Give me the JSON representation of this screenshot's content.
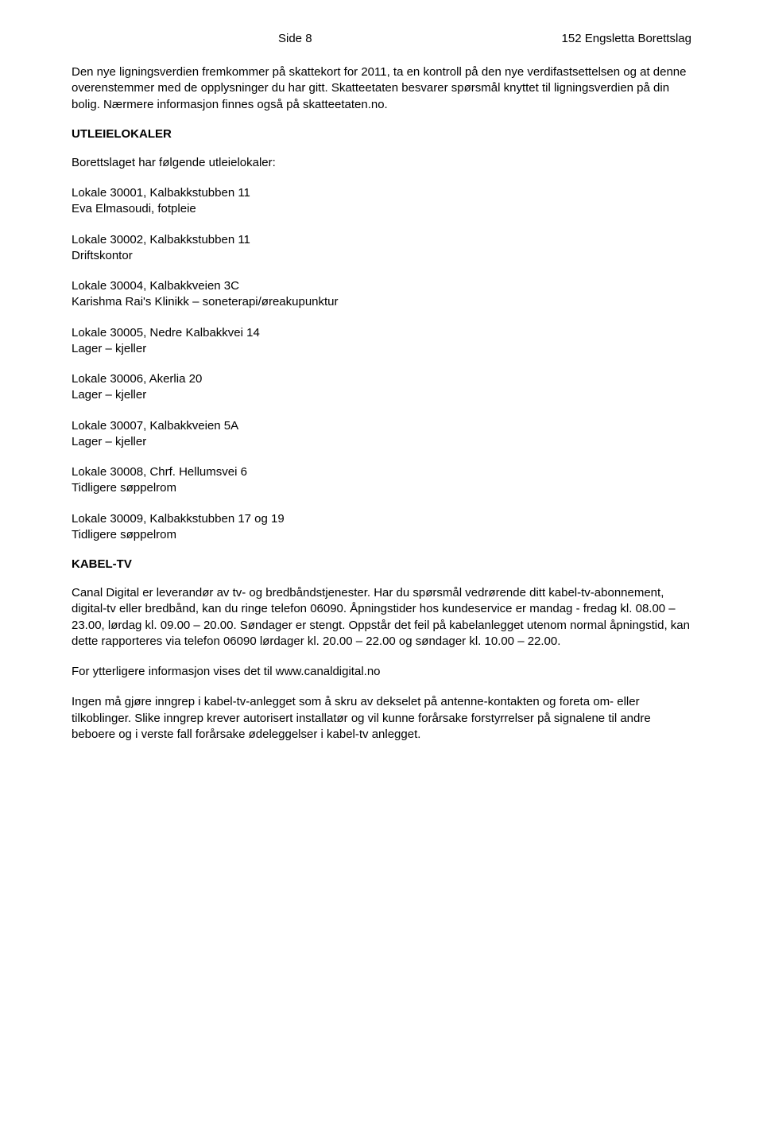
{
  "header": {
    "left": "Side 8",
    "right": "152 Engsletta Borettslag"
  },
  "intro": {
    "p1": "Den nye ligningsverdien fremkommer på skattekort for 2011, ta en kontroll på den nye verdifastsettelsen og at denne overenstemmer med de opplysninger du har gitt. Skatteetaten besvarer spørsmål knyttet til ligningsverdien på din bolig. Nærmere informasjon finnes også på skatteetaten.no."
  },
  "utleie": {
    "title": "UTLEIELOKALER",
    "lead": "Borettslaget har følgende utleielokaler:",
    "items": [
      {
        "line1": "Lokale 30001, Kalbakkstubben 11",
        "line2": "Eva Elmasoudi, fotpleie"
      },
      {
        "line1": "Lokale 30002, Kalbakkstubben 11",
        "line2": "Driftskontor"
      },
      {
        "line1": "Lokale 30004, Kalbakkveien 3C",
        "line2": "Karishma Rai's Klinikk – soneterapi/øreakupunktur"
      },
      {
        "line1": "Lokale 30005, Nedre Kalbakkvei 14",
        "line2": "Lager – kjeller"
      },
      {
        "line1": "Lokale 30006, Akerlia 20",
        "line2": "Lager – kjeller"
      },
      {
        "line1": "Lokale 30007, Kalbakkveien 5A",
        "line2": "Lager – kjeller"
      },
      {
        "line1": "Lokale 30008, Chrf. Hellumsvei 6",
        "line2": "Tidligere søppelrom"
      },
      {
        "line1": "Lokale 30009, Kalbakkstubben 17 og 19",
        "line2": "Tidligere søppelrom"
      }
    ]
  },
  "kabeltv": {
    "title": "KABEL-TV",
    "p1": "Canal Digital er leverandør av tv- og bredbåndstjenester. Har du spørsmål vedrørende ditt kabel-tv-abonnement, digital-tv eller bredbånd, kan du ringe telefon 06090. Åpningstider hos kundeservice er mandag - fredag kl. 08.00 – 23.00, lørdag kl. 09.00 – 20.00. Søndager er stengt. Oppstår det feil på kabelanlegget utenom normal åpningstid, kan dette rapporteres via telefon 06090 lørdager kl. 20.00 – 22.00 og søndager kl. 10.00 – 22.00.",
    "p2": "For ytterligere informasjon vises det til www.canaldigital.no",
    "p3": "Ingen må gjøre inngrep i kabel-tv-anlegget som å skru av dekselet på antenne-kontakten og foreta om- eller tilkoblinger. Slike inngrep krever autorisert installatør og vil kunne forårsake forstyrrelser på signalene til andre beboere og i verste fall forårsake ødeleggelser i kabel-tv anlegget."
  }
}
